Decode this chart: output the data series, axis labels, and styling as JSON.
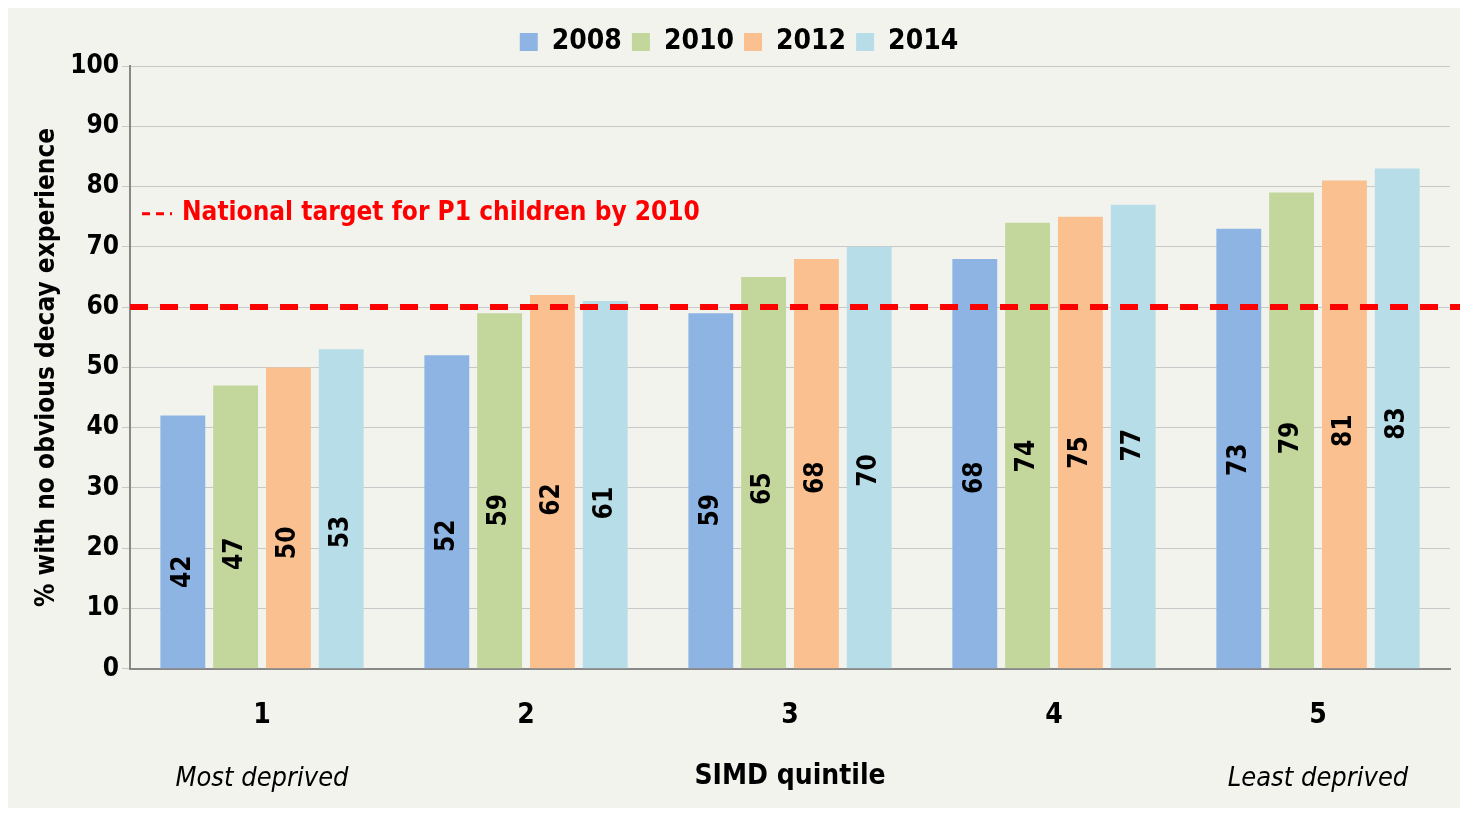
{
  "chart_data": {
    "type": "bar",
    "xlabel": "SIMD quintile",
    "ylabel": "% with no obvious decay experience",
    "categories": [
      "1",
      "2",
      "3",
      "4",
      "5"
    ],
    "series": [
      {
        "name": "2008",
        "color": "#8eb4e3",
        "values": [
          42,
          52,
          59,
          68,
          73
        ]
      },
      {
        "name": "2010",
        "color": "#c3d69b",
        "values": [
          47,
          59,
          65,
          74,
          79
        ]
      },
      {
        "name": "2012",
        "color": "#fac090",
        "values": [
          50,
          62,
          68,
          75,
          81
        ]
      },
      {
        "name": "2014",
        "color": "#b7dee8",
        "values": [
          53,
          61,
          70,
          77,
          83
        ]
      }
    ],
    "ylim": [
      0,
      100
    ],
    "yticks": [
      0,
      10,
      20,
      30,
      40,
      50,
      60,
      70,
      80,
      90,
      100
    ],
    "grid": "y",
    "legend": "top",
    "data_labels": true,
    "ref_lines": [
      {
        "axis": "y",
        "value": 60,
        "label": "National target for P1 children by 2010",
        "color": "#ff0000",
        "line_style": "dashed"
      }
    ],
    "annotations": [
      "Most deprived",
      "Least deprived"
    ]
  }
}
